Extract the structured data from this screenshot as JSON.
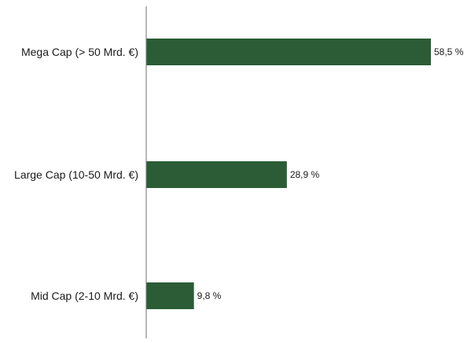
{
  "chart_data": {
    "type": "bar",
    "orientation": "horizontal",
    "categories": [
      "Mega Cap (> 50 Mrd. €)",
      "Large Cap (10-50 Mrd. €)",
      "Mid Cap (2-10 Mrd. €)"
    ],
    "values": [
      58.5,
      28.9,
      9.8
    ],
    "value_labels": [
      "58,5 %",
      "28,9 %",
      "9,8 %"
    ],
    "title": "",
    "xlabel": "",
    "ylabel": "",
    "xlim": [
      0,
      60
    ],
    "grid": false,
    "legend": "none",
    "bar_color": "#2b5c36"
  }
}
